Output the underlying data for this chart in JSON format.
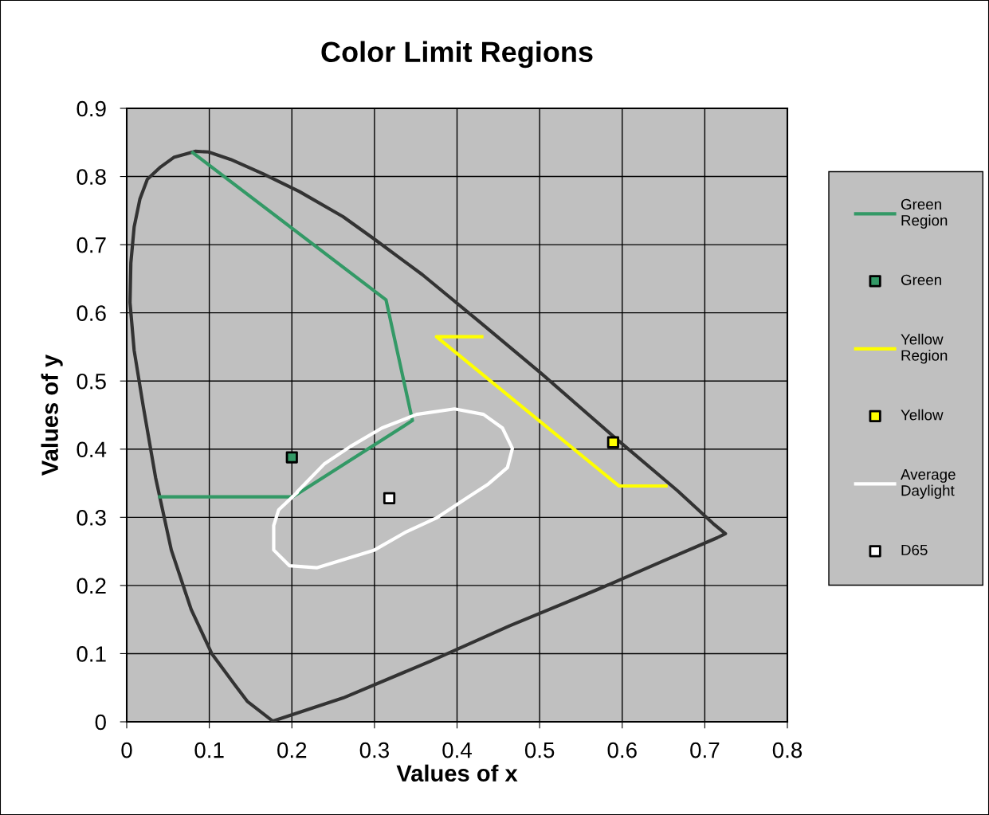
{
  "chart_data": {
    "type": "line",
    "title": "Color Limit Regions",
    "xlabel": "Values of x",
    "ylabel": "Values of y",
    "xlim": [
      0,
      0.8
    ],
    "xticks": [
      0,
      0.1,
      0.2,
      0.3,
      0.4,
      0.5,
      0.6,
      0.7,
      0.8
    ],
    "ylim": [
      0,
      0.9
    ],
    "yticks": [
      0,
      0.1,
      0.2,
      0.3,
      0.4,
      0.5,
      0.6,
      0.7,
      0.8,
      0.9
    ],
    "grid": true,
    "legend": "right",
    "series": [
      {
        "color": "#333333",
        "x": [
          0.178,
          0.146,
          0.131,
          0.103,
          0.078,
          0.054,
          0.035,
          0.02,
          0.009,
          0.004,
          0.005,
          0.009,
          0.016,
          0.025,
          0.04,
          0.057,
          0.083,
          0.099,
          0.126,
          0.165,
          0.209,
          0.262,
          0.3,
          0.358,
          0.426,
          0.503,
          0.59,
          0.667,
          0.71,
          0.725,
          0.715,
          0.648,
          0.57,
          0.464,
          0.368,
          0.262,
          0.177
        ],
        "values": [
          0.0,
          0.03,
          0.054,
          0.1,
          0.165,
          0.252,
          0.358,
          0.463,
          0.545,
          0.615,
          0.673,
          0.726,
          0.767,
          0.796,
          0.813,
          0.828,
          0.837,
          0.836,
          0.825,
          0.804,
          0.778,
          0.741,
          0.708,
          0.656,
          0.588,
          0.51,
          0.418,
          0.339,
          0.291,
          0.276,
          0.27,
          0.235,
          0.194,
          0.141,
          0.089,
          0.035,
          0.001
        ]
      },
      {
        "name": "Green Region",
        "color": "#339966",
        "x": [
          0.08,
          0.314,
          0.346,
          0.201,
          0.04
        ],
        "values": [
          0.835,
          0.619,
          0.442,
          0.33,
          0.33
        ]
      },
      {
        "type": "scatter",
        "marker": "square",
        "name": "Green",
        "color": "#339966",
        "x": [
          0.2
        ],
        "values": [
          0.388
        ]
      },
      {
        "name": "Yellow Region",
        "color": "#ffff00",
        "x": [
          0.43,
          0.375,
          0.596,
          0.653
        ],
        "values": [
          0.565,
          0.565,
          0.346,
          0.346
        ]
      },
      {
        "type": "scatter",
        "marker": "square",
        "name": "Yellow",
        "color": "#ffff00",
        "x": [
          0.589
        ],
        "values": [
          0.41
        ]
      },
      {
        "name": "Average Daylight",
        "color": "#ffffff",
        "x": [
          0.207,
          0.239,
          0.271,
          0.309,
          0.351,
          0.397,
          0.432,
          0.455,
          0.467,
          0.461,
          0.438,
          0.409,
          0.375,
          0.339,
          0.3,
          0.271,
          0.23,
          0.197,
          0.178,
          0.178,
          0.184,
          0.206
        ],
        "values": [
          0.338,
          0.378,
          0.404,
          0.431,
          0.451,
          0.459,
          0.451,
          0.431,
          0.401,
          0.373,
          0.349,
          0.326,
          0.299,
          0.279,
          0.252,
          0.241,
          0.226,
          0.229,
          0.252,
          0.288,
          0.311,
          0.336
        ]
      },
      {
        "type": "scatter",
        "marker": "square",
        "name": "D65",
        "color": "#ffffff",
        "x": [
          0.318
        ],
        "values": [
          0.328
        ]
      }
    ]
  }
}
